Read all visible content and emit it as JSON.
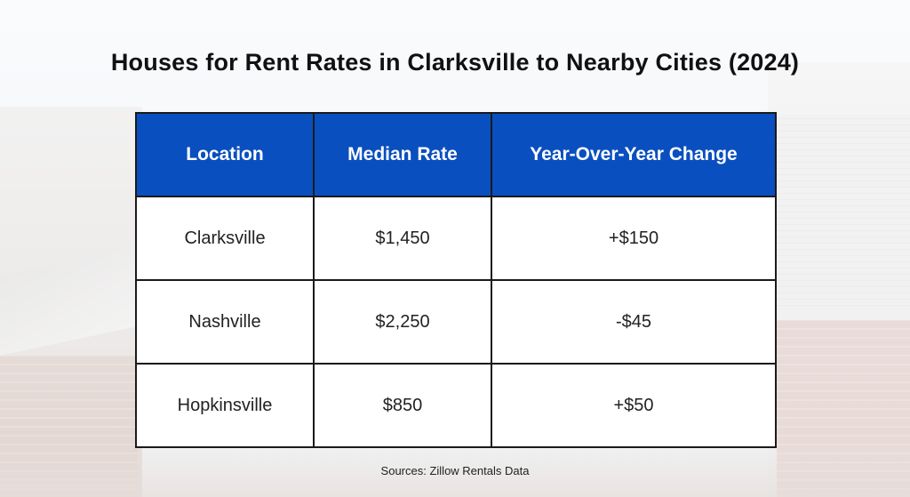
{
  "chart_data": {
    "type": "table",
    "title": "Houses for Rent Rates in Clarksville to Nearby Cities (2024)",
    "columns": [
      "Location",
      "Median Rate",
      "Year-Over-Year Change"
    ],
    "rows": [
      [
        "Clarksville",
        "$1,450",
        "+$150"
      ],
      [
        "Nashville",
        "$2,250",
        "-$45"
      ],
      [
        "Hopkinsville",
        "$850",
        "+$50"
      ]
    ],
    "source": "Sources: Zillow Rentals Data"
  },
  "colors": {
    "header_bg": "#0a4fbf",
    "header_text": "#ffffff",
    "border": "#1a1a1a"
  }
}
